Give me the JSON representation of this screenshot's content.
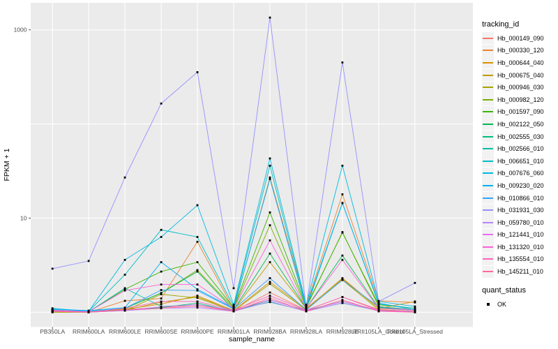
{
  "chart_data": {
    "type": "line",
    "title": "",
    "xlabel": "sample_name",
    "ylabel": "FPKM + 1",
    "y_scale": "log10",
    "ylim": [
      0.7,
      1950
    ],
    "grid": true,
    "legend_position": "right",
    "panel_bg": "#EBEBEB",
    "grid_color": "#FFFFFF",
    "point_color": "#000000",
    "tick_text_color": "#4D4D4D",
    "y_ticks": [
      {
        "value": 1000,
        "label": "1000"
      },
      {
        "value": 10,
        "label": "10"
      }
    ],
    "y_gridlines": [
      1,
      10,
      100,
      1000
    ],
    "categories": [
      "PB350LA",
      "RRIM600LA",
      "RRIM600LE",
      "RRIM600SE",
      "RRIM600PE",
      "RRIM901LA",
      "RRIM928BA",
      "RRIM928LA",
      "RRIM928LE",
      "RRII105LA_Control",
      "RRII105LA_Stressed"
    ],
    "legend_title": "tracking_id",
    "series": [
      {
        "name": "Hb_000149_090",
        "color": "#F8766D",
        "values": [
          1.05,
          1.0,
          1.07,
          1.12,
          1.2,
          1.02,
          1.62,
          1.05,
          1.45,
          1.07,
          1.02
        ]
      },
      {
        "name": "Hb_000330_120",
        "color": "#EA8331",
        "values": [
          1.02,
          1.0,
          1.32,
          1.4,
          5.6,
          1.08,
          27,
          1.18,
          17.9,
          1.32,
          1.27
        ]
      },
      {
        "name": "Hb_000644_040",
        "color": "#D89000",
        "values": [
          1.0,
          1.0,
          1.08,
          1.22,
          1.5,
          1.04,
          2.1,
          1.08,
          2.3,
          1.1,
          1.3
        ]
      },
      {
        "name": "Hb_000675_040",
        "color": "#C09B00",
        "values": [
          1.02,
          1.0,
          1.05,
          1.28,
          1.45,
          1.05,
          3.4,
          1.1,
          2.25,
          1.1,
          1.05
        ]
      },
      {
        "name": "Hb_000946_030",
        "color": "#A3A500",
        "values": [
          1.0,
          1.0,
          1.04,
          1.55,
          1.42,
          1.03,
          2.0,
          1.06,
          2.2,
          1.06,
          1.02
        ]
      },
      {
        "name": "Hb_000982_120",
        "color": "#7CAE00",
        "values": [
          1.04,
          1.0,
          1.1,
          1.6,
          2.8,
          1.1,
          8.4,
          1.12,
          7.1,
          1.15,
          1.06
        ]
      },
      {
        "name": "Hb_001597_090",
        "color": "#39B600",
        "values": [
          1.05,
          1.01,
          1.75,
          2.7,
          3.4,
          1.12,
          11.5,
          1.15,
          7.0,
          1.2,
          1.1
        ]
      },
      {
        "name": "Hb_002122_050",
        "color": "#00BB4E",
        "values": [
          1.02,
          1.0,
          1.1,
          1.6,
          2.7,
          1.06,
          4.2,
          1.1,
          4.0,
          1.12,
          1.05
        ]
      },
      {
        "name": "Hb_002555_030",
        "color": "#00BF7D",
        "values": [
          1.02,
          1.0,
          1.06,
          1.12,
          1.25,
          1.02,
          1.35,
          1.05,
          1.3,
          1.05,
          1.02
        ]
      },
      {
        "name": "Hb_002566_010",
        "color": "#00C1A3",
        "values": [
          1.06,
          1.01,
          1.8,
          1.15,
          1.2,
          1.05,
          1.28,
          1.03,
          1.25,
          1.04,
          1.02
        ]
      },
      {
        "name": "Hb_006651_010",
        "color": "#00BFC4",
        "values": [
          1.06,
          1.02,
          2.5,
          7.5,
          6.3,
          1.15,
          36,
          1.15,
          14.5,
          1.22,
          1.1
        ]
      },
      {
        "name": "Hb_007676_060",
        "color": "#00BAE0",
        "values": [
          1.1,
          1.02,
          3.6,
          6.3,
          13.7,
          1.2,
          43,
          1.2,
          36,
          1.3,
          1.15
        ]
      },
      {
        "name": "Hb_009230_020",
        "color": "#00B0F6",
        "values": [
          1.08,
          1.04,
          1.12,
          3.4,
          1.75,
          1.1,
          26,
          1.1,
          14.4,
          1.25,
          1.06
        ]
      },
      {
        "name": "Hb_010866_010",
        "color": "#35A2FF",
        "values": [
          1.05,
          1.02,
          1.1,
          1.72,
          1.7,
          1.08,
          2.3,
          1.06,
          2.2,
          1.14,
          1.05
        ]
      },
      {
        "name": "Hb_031931_030",
        "color": "#9590FF",
        "values": [
          2.9,
          3.5,
          27,
          165,
          355,
          1.8,
          1350,
          1.12,
          450,
          1.3,
          2.05
        ]
      },
      {
        "name": "Hb_059780_010",
        "color": "#B983FF",
        "values": [
          1.02,
          1.0,
          1.04,
          1.1,
          1.12,
          1.02,
          1.3,
          1.02,
          1.26,
          1.04,
          1.0
        ]
      },
      {
        "name": "Hb_121441_010",
        "color": "#E76BF3",
        "values": [
          1.02,
          1.0,
          1.05,
          1.14,
          1.2,
          1.04,
          1.36,
          1.04,
          1.3,
          1.05,
          1.0
        ]
      },
      {
        "name": "Hb_131320_010",
        "color": "#FA62DB",
        "values": [
          1.05,
          1.01,
          1.7,
          1.97,
          1.97,
          1.1,
          5.8,
          1.1,
          3.6,
          1.1,
          1.05
        ]
      },
      {
        "name": "Hb_135554_010",
        "color": "#FF62BC",
        "values": [
          1.04,
          1.0,
          1.1,
          1.3,
          1.3,
          1.05,
          1.5,
          1.05,
          1.45,
          1.05,
          1.02
        ]
      },
      {
        "name": "Hb_145211_010",
        "color": "#FF6A98",
        "values": [
          1.02,
          1.0,
          1.06,
          1.1,
          1.16,
          1.02,
          1.42,
          1.02,
          1.35,
          1.02,
          1.0
        ]
      }
    ],
    "legend2": {
      "title": "quant_status",
      "items": [
        {
          "label": "OK",
          "marker": "black-square"
        }
      ]
    }
  }
}
